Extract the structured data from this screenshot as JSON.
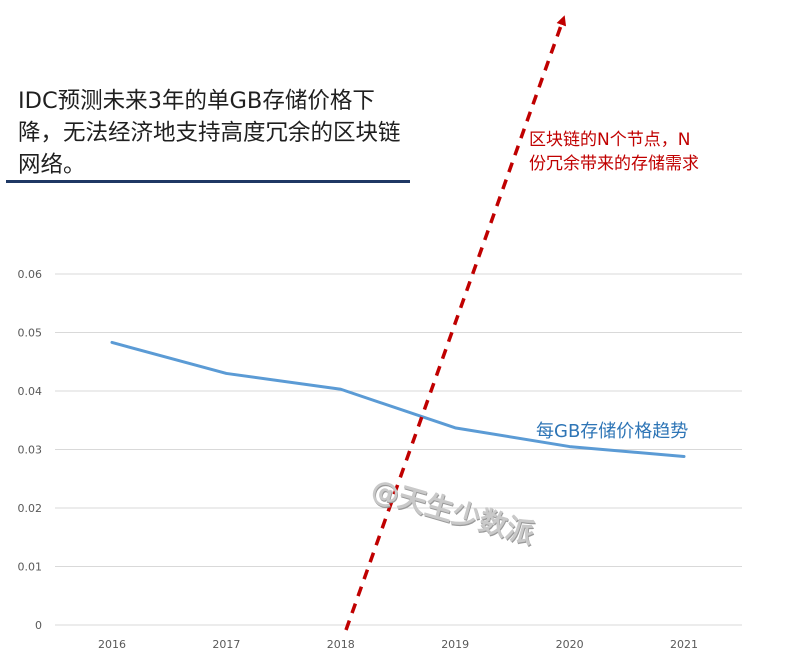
{
  "headline": "IDC预测未来3年的单GB存储价格下降，无法经济地支持高度冗余的区块链网络。",
  "annotation": "区块链的N个节点，N份冗余带来的存储需求",
  "watermark": "@天生少数派",
  "colors": {
    "series": "#5b9bd5",
    "series_label": "#2e75b6",
    "arrow": "#c00000",
    "rule": "#1f3864",
    "grid": "#d9d9d9"
  },
  "chart_data": {
    "type": "line",
    "categories": [
      "2016",
      "2017",
      "2018",
      "2019",
      "2020",
      "2021"
    ],
    "series": [
      {
        "name": "每GB存储价格趋势",
        "values": [
          0.0483,
          0.043,
          0.0403,
          0.0337,
          0.0305,
          0.0288
        ]
      }
    ],
    "yticks": [
      "0",
      "0.01",
      "0.02",
      "0.03",
      "0.04",
      "0.05",
      "0.06"
    ],
    "ylim": [
      0,
      0.06
    ],
    "grid": true,
    "legend": "inline label near line end"
  }
}
